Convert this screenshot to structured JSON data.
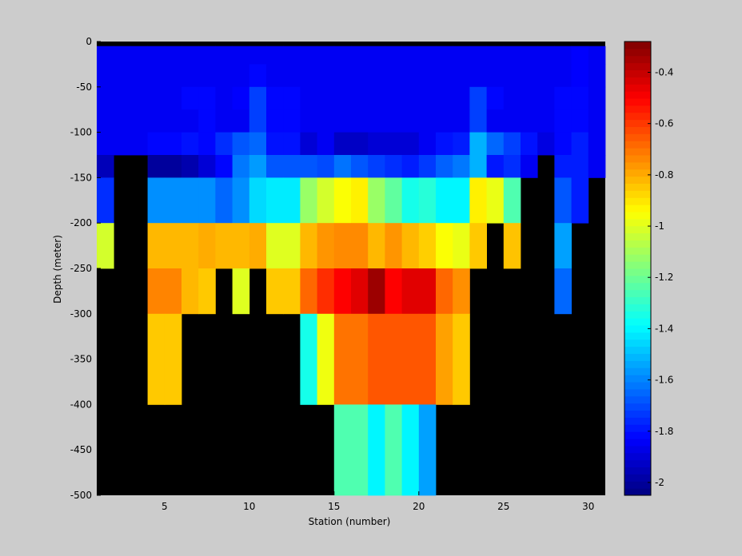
{
  "chart_data": {
    "type": "heatmap",
    "xlabel": "Station (number)",
    "ylabel": "Depth (meter)",
    "x_ticks": [
      "5",
      "10",
      "15",
      "20",
      "25",
      "30"
    ],
    "y_ticks": [
      "0",
      "-50",
      "-100",
      "-150",
      "-200",
      "-250",
      "-300",
      "-350",
      "-400",
      "-450",
      "-500"
    ],
    "colorbar_ticks": [
      "-0.4",
      "-0.6",
      "-0.8",
      "-1",
      "-1.2",
      "-1.4",
      "-1.6",
      "-1.8",
      "-2"
    ],
    "colorbar_range": [
      -2.05,
      -0.28
    ],
    "colormap": "jet",
    "no_data_color": "#000000",
    "background_color": "#cccccc",
    "xlim": [
      1,
      31
    ],
    "ylim": [
      -500,
      0
    ],
    "stations": [
      1,
      2,
      3,
      4,
      5,
      6,
      7,
      8,
      9,
      10,
      11,
      12,
      13,
      14,
      15,
      16,
      17,
      18,
      19,
      20,
      21,
      22,
      23,
      24,
      25,
      26,
      27,
      28,
      29,
      30,
      31
    ],
    "depth_bins": [
      0,
      -5,
      -25,
      -50,
      -75,
      -100,
      -125,
      -150,
      -200,
      -250,
      -300,
      -400,
      -500
    ],
    "values": [
      [
        null,
        null,
        null,
        null,
        null,
        null,
        null,
        null,
        null,
        null,
        null,
        null,
        null,
        null,
        null,
        null,
        null,
        null,
        null,
        null,
        null,
        null,
        null,
        null,
        null,
        null,
        null,
        null,
        null,
        null
      ],
      [
        -1.85,
        -1.85,
        -1.85,
        -1.85,
        -1.85,
        -1.85,
        -1.85,
        -1.85,
        -1.85,
        -1.85,
        -1.85,
        -1.85,
        -1.85,
        -1.85,
        -1.85,
        -1.85,
        -1.85,
        -1.85,
        -1.85,
        -1.85,
        -1.85,
        -1.85,
        -1.85,
        -1.85,
        -1.85,
        -1.85,
        -1.85,
        -1.85,
        -1.83,
        -1.85
      ],
      [
        -1.85,
        -1.85,
        -1.85,
        -1.85,
        -1.85,
        -1.85,
        -1.85,
        -1.85,
        -1.85,
        -1.82,
        -1.85,
        -1.85,
        -1.85,
        -1.85,
        -1.85,
        -1.85,
        -1.85,
        -1.85,
        -1.85,
        -1.85,
        -1.85,
        -1.85,
        -1.85,
        -1.85,
        -1.85,
        -1.85,
        -1.85,
        -1.85,
        -1.83,
        -1.85
      ],
      [
        -1.85,
        -1.85,
        -1.85,
        -1.85,
        -1.85,
        -1.82,
        -1.82,
        -1.85,
        -1.83,
        -1.72,
        -1.82,
        -1.82,
        -1.85,
        -1.85,
        -1.85,
        -1.85,
        -1.85,
        -1.85,
        -1.85,
        -1.85,
        -1.85,
        -1.85,
        -1.72,
        -1.82,
        -1.85,
        -1.85,
        -1.85,
        -1.82,
        -1.82,
        -1.85
      ],
      [
        -1.85,
        -1.85,
        -1.85,
        -1.85,
        -1.85,
        -1.85,
        -1.82,
        -1.85,
        -1.85,
        -1.72,
        -1.82,
        -1.82,
        -1.85,
        -1.85,
        -1.85,
        -1.85,
        -1.85,
        -1.85,
        -1.85,
        -1.85,
        -1.85,
        -1.85,
        -1.72,
        -1.85,
        -1.85,
        -1.85,
        -1.85,
        -1.82,
        -1.82,
        -1.85
      ],
      [
        -1.85,
        -1.85,
        -1.85,
        -1.82,
        -1.82,
        -1.8,
        -1.82,
        -1.75,
        -1.68,
        -1.65,
        -1.8,
        -1.8,
        -1.9,
        -1.85,
        -1.93,
        -1.93,
        -1.9,
        -1.9,
        -1.9,
        -1.85,
        -1.8,
        -1.78,
        -1.52,
        -1.65,
        -1.72,
        -1.8,
        -1.88,
        -1.82,
        -1.78,
        -1.85
      ],
      [
        -1.95,
        null,
        null,
        -2.0,
        -2.0,
        -1.97,
        -1.9,
        -1.82,
        -1.62,
        -1.56,
        -1.68,
        -1.68,
        -1.68,
        -1.7,
        -1.63,
        -1.68,
        -1.72,
        -1.75,
        -1.78,
        -1.73,
        -1.66,
        -1.62,
        -1.52,
        -1.79,
        -1.75,
        -1.85,
        null,
        -1.78,
        -1.78,
        -1.85
      ],
      [
        -1.75,
        null,
        null,
        -1.58,
        -1.58,
        -1.58,
        -1.58,
        -1.65,
        -1.58,
        -1.45,
        -1.42,
        -1.42,
        -1.12,
        -1.02,
        -0.95,
        -0.92,
        -1.12,
        -1.22,
        -1.35,
        -1.32,
        -1.4,
        -1.4,
        -0.92,
        -0.98,
        -1.25,
        null,
        null,
        -1.68,
        -1.78,
        null
      ],
      [
        -1.02,
        null,
        null,
        -0.82,
        -0.82,
        -0.82,
        -0.8,
        -0.82,
        -0.82,
        -0.8,
        -1.0,
        -1.0,
        -0.82,
        -0.76,
        -0.74,
        -0.74,
        -0.82,
        -0.76,
        -0.82,
        -0.86,
        -0.95,
        -0.98,
        -0.85,
        null,
        -0.84,
        null,
        null,
        -1.55,
        null,
        null
      ],
      [
        null,
        null,
        null,
        -0.73,
        -0.73,
        -0.82,
        -0.85,
        null,
        -1.0,
        null,
        -0.85,
        -0.85,
        -0.68,
        -0.58,
        -0.5,
        -0.45,
        -0.33,
        -0.5,
        -0.45,
        -0.45,
        -0.68,
        -0.75,
        null,
        null,
        null,
        null,
        null,
        -1.65,
        null,
        null
      ],
      [
        null,
        null,
        null,
        -0.85,
        -0.85,
        null,
        null,
        null,
        null,
        null,
        null,
        null,
        -1.35,
        -0.97,
        -0.7,
        -0.7,
        -0.65,
        -0.65,
        -0.65,
        -0.65,
        -0.78,
        -0.85,
        null,
        null,
        null,
        null,
        null,
        null,
        null,
        null
      ],
      [
        null,
        null,
        null,
        null,
        null,
        null,
        null,
        null,
        null,
        null,
        null,
        null,
        null,
        null,
        -1.25,
        -1.25,
        -1.4,
        -1.25,
        -1.4,
        -1.55,
        null,
        null,
        null,
        null,
        null,
        null,
        null,
        null,
        null,
        null
      ]
    ]
  }
}
